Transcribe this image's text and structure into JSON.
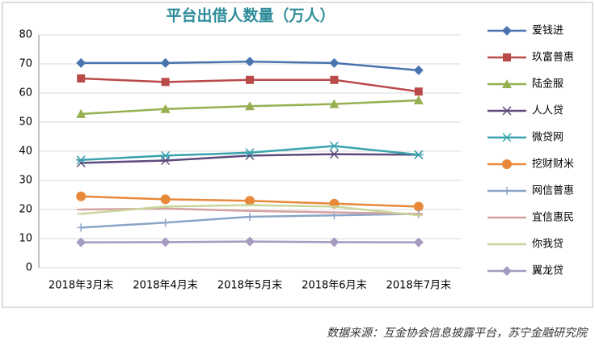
{
  "chart_data": {
    "type": "line",
    "title": "平台出借人数量（万人）",
    "source": "数据来源：互金协会信息披露平台，苏宁金融研究院",
    "categories": [
      "2018年3月末",
      "2018年4月末",
      "2018年5月末",
      "2018年6月末",
      "2018年7月末"
    ],
    "ylim": [
      0,
      80
    ],
    "yticks": [
      0,
      10,
      20,
      30,
      40,
      50,
      60,
      70,
      80
    ],
    "grid": true,
    "legend": "right",
    "series": [
      {
        "name": "爱钱进",
        "color": "#4a74b0",
        "marker": "diamond",
        "values": [
          70.3,
          70.3,
          70.8,
          70.3,
          67.8
        ]
      },
      {
        "name": "玖富普惠",
        "color": "#b94a48",
        "marker": "square",
        "values": [
          65,
          63.8,
          64.5,
          64.5,
          60.5
        ]
      },
      {
        "name": "陆金服",
        "color": "#96b051",
        "marker": "triangle",
        "values": [
          52.8,
          54.5,
          55.5,
          56.2,
          57.5
        ]
      },
      {
        "name": "人人贷",
        "color": "#5e4a7c",
        "marker": "x",
        "values": [
          36,
          36.8,
          38.5,
          39,
          38.8
        ]
      },
      {
        "name": "微贷网",
        "color": "#3aa3ad",
        "marker": "star",
        "values": [
          37,
          38.5,
          39.5,
          41.8,
          38.8
        ]
      },
      {
        "name": "挖财财米",
        "color": "#e8883b",
        "marker": "circle",
        "values": [
          24.5,
          23.5,
          23,
          22,
          21
        ]
      },
      {
        "name": "网信普惠",
        "color": "#8aa5c8",
        "marker": "plus",
        "values": [
          13.8,
          15.5,
          17.5,
          18,
          18.5
        ]
      },
      {
        "name": "宜信惠民",
        "color": "#d4a0a0",
        "marker": "dash",
        "values": [
          20,
          20.3,
          19.5,
          19,
          18.5
        ]
      },
      {
        "name": "你我贷",
        "color": "#c9d69b",
        "marker": "dash",
        "values": [
          18.5,
          21,
          21.5,
          21,
          18
        ]
      },
      {
        "name": "翼龙贷",
        "color": "#a59ac0",
        "marker": "diamond",
        "values": [
          8.7,
          8.8,
          9,
          8.8,
          8.7
        ]
      }
    ]
  }
}
